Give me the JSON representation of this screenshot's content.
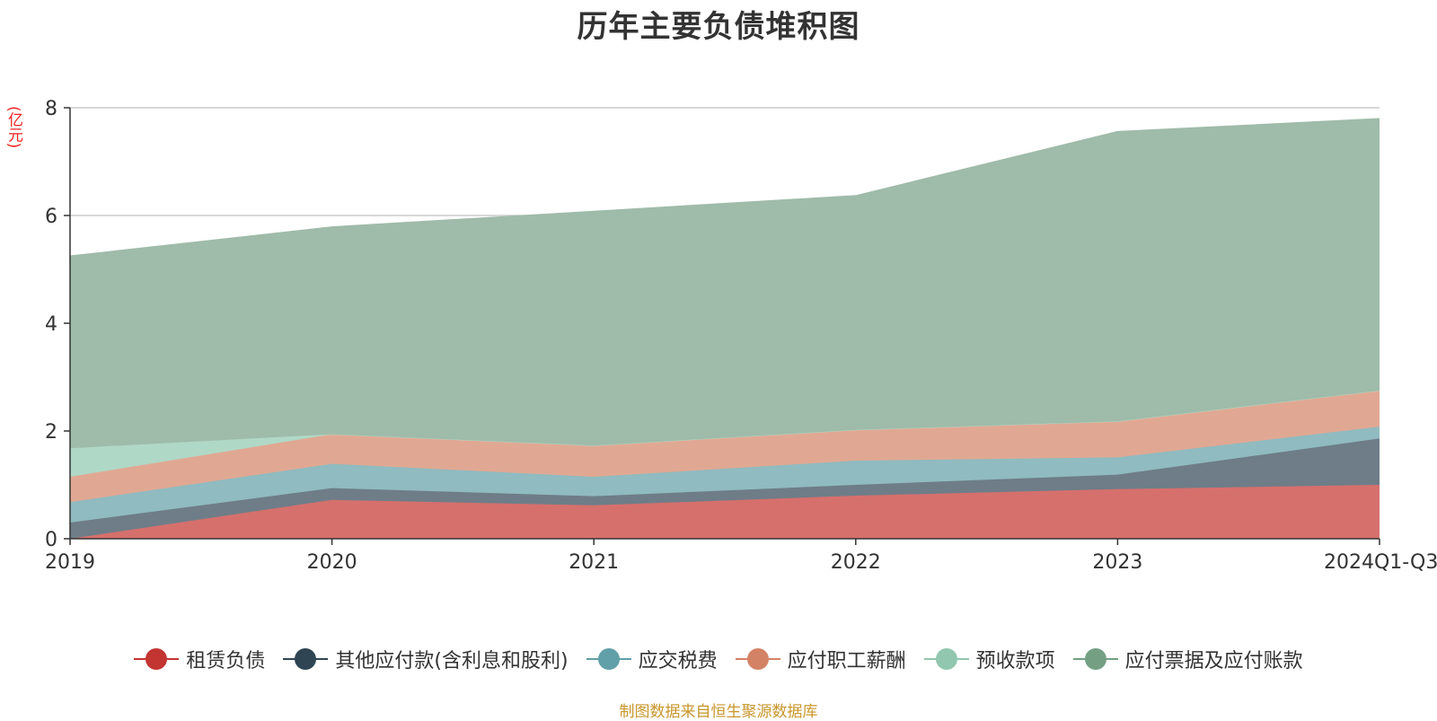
{
  "chart_data": {
    "type": "area",
    "stacked": true,
    "title": "历年主要负债堆积图",
    "ylabel": "(亿元)",
    "ylim": [
      0,
      8
    ],
    "yticks": [
      0,
      2,
      4,
      6,
      8
    ],
    "categories": [
      "2019",
      "2020",
      "2021",
      "2022",
      "2023",
      "2024Q1-Q3"
    ],
    "series": [
      {
        "name": "租赁负债",
        "color": "#c23531",
        "fill": "#d6706d",
        "values": [
          0.0,
          0.72,
          0.62,
          0.8,
          0.92,
          1.0
        ]
      },
      {
        "name": "其他应付款(含利息和股利)",
        "color": "#2f4554",
        "fill": "#6e7d88",
        "values": [
          0.3,
          0.22,
          0.17,
          0.2,
          0.27,
          0.86
        ]
      },
      {
        "name": "应交税费",
        "color": "#61a0a8",
        "fill": "#90bbc0",
        "values": [
          0.38,
          0.45,
          0.36,
          0.45,
          0.32,
          0.22
        ]
      },
      {
        "name": "应付职工薪酬",
        "color": "#d48265",
        "fill": "#e0a893",
        "values": [
          0.47,
          0.55,
          0.58,
          0.57,
          0.67,
          0.67
        ]
      },
      {
        "name": "预收款项",
        "color": "#91c7ae",
        "fill": "#b0d8c6",
        "values": [
          0.53,
          0.0,
          0.0,
          0.0,
          0.0,
          0.0
        ]
      },
      {
        "name": "应付票据及应付账款",
        "color": "#749f83",
        "fill": "#9fbba9",
        "values": [
          3.57,
          3.85,
          4.35,
          4.35,
          5.38,
          5.05
        ]
      }
    ],
    "grid": true,
    "legend_position": "bottom"
  },
  "source_note": "制图数据来自恒生聚源数据库"
}
